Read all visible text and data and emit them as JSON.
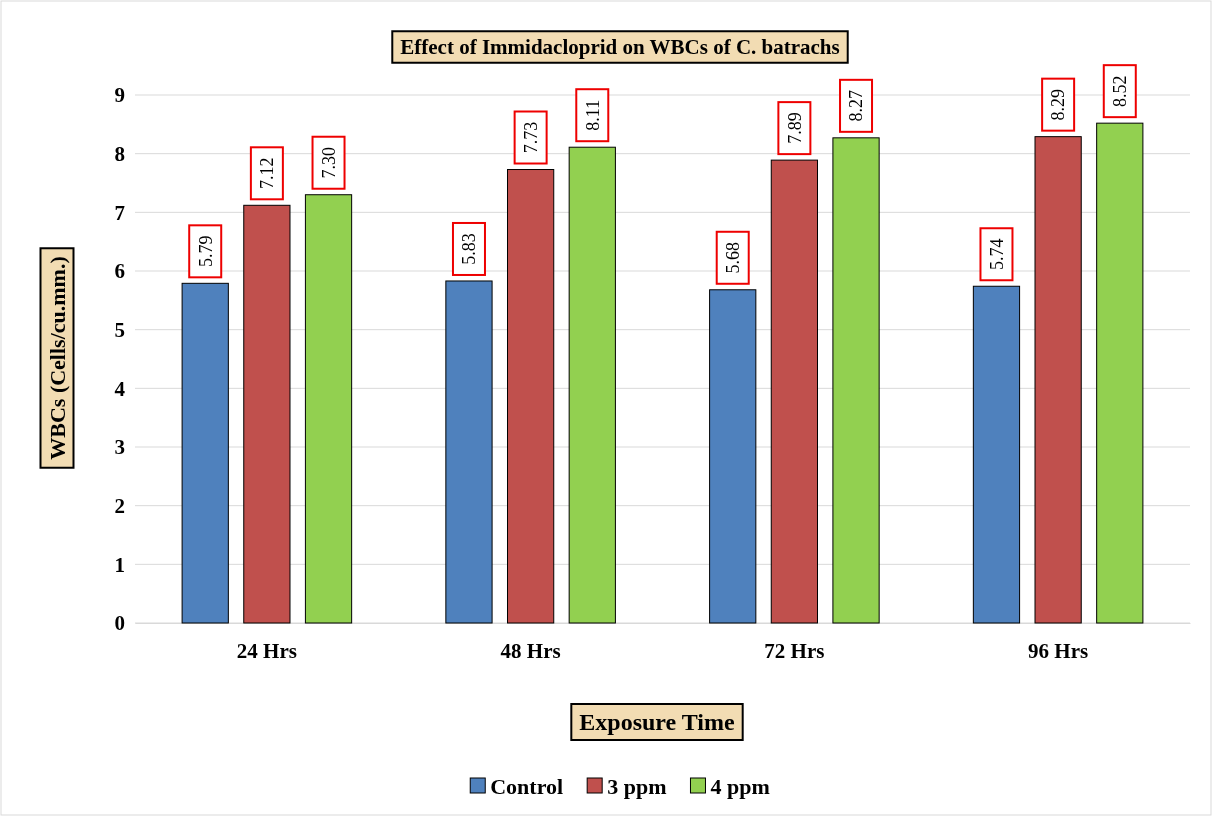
{
  "chart_data": {
    "type": "bar",
    "title": "Effect of Immidacloprid on WBCs of C. batrachs",
    "xlabel": "Exposure Time",
    "ylabel": "WBCs (Cells/cu.mm.)",
    "categories": [
      "24 Hrs",
      "48 Hrs",
      "72 Hrs",
      "96 Hrs"
    ],
    "series": [
      {
        "name": "Control",
        "color": "#4f81bd",
        "values": [
          5.79,
          5.83,
          5.68,
          5.74
        ],
        "value_labels": [
          "5.79",
          "5.83",
          "5.68",
          "5.74"
        ]
      },
      {
        "name": "3 ppm",
        "color": "#c0504d",
        "values": [
          7.12,
          7.73,
          7.89,
          8.29
        ],
        "value_labels": [
          "7.12",
          "7.73",
          "7.89",
          "8.29"
        ]
      },
      {
        "name": "4 ppm",
        "color": "#92d050",
        "values": [
          7.3,
          8.11,
          8.27,
          8.52
        ],
        "value_labels": [
          "7.30",
          "8.11",
          "8.27",
          "8.52"
        ]
      }
    ],
    "ylim": [
      0,
      9
    ],
    "yticks": [
      0,
      1,
      2,
      3,
      4,
      5,
      6,
      7,
      8,
      9
    ],
    "grid": "y",
    "legend": "bottom"
  }
}
